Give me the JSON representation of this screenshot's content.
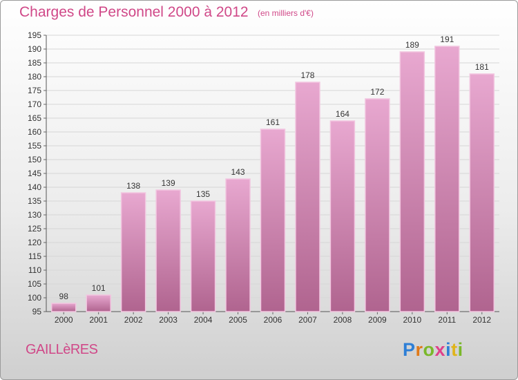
{
  "header": {
    "title": "Charges de Personnel 2000 à 2012",
    "subtitle": "(en milliers d'€)"
  },
  "footer": {
    "commune": "GAILLèRES",
    "logo": [
      {
        "char": "P",
        "color": "#2e7fd6"
      },
      {
        "char": "r",
        "color": "#e07a1a"
      },
      {
        "char": "o",
        "color": "#7ab82a"
      },
      {
        "char": "x",
        "color": "#e0408a"
      },
      {
        "char": "i",
        "color": "#2e7fd6"
      },
      {
        "char": "t",
        "color": "#e0b41a"
      },
      {
        "char": "i",
        "color": "#7ab82a"
      }
    ]
  },
  "colors": {
    "accent": "#d04888",
    "bar_top": "#e8a8d0",
    "bar_bottom": "#b0648f",
    "bar_edge": "#f2c6e0"
  },
  "chart_data": {
    "type": "bar",
    "title": "Charges de Personnel 2000 à 2012",
    "subtitle": "(en milliers d'€)",
    "categories": [
      "2000",
      "2001",
      "2002",
      "2003",
      "2004",
      "2005",
      "2006",
      "2007",
      "2008",
      "2009",
      "2010",
      "2011",
      "2012"
    ],
    "values": [
      98,
      101,
      138,
      139,
      135,
      143,
      161,
      178,
      164,
      172,
      189,
      191,
      181
    ],
    "ylim": [
      95,
      195
    ],
    "yticks": [
      95,
      100,
      105,
      110,
      115,
      120,
      125,
      130,
      135,
      140,
      145,
      150,
      155,
      160,
      165,
      170,
      175,
      180,
      185,
      190,
      195
    ],
    "grid": true,
    "legend": "none"
  }
}
